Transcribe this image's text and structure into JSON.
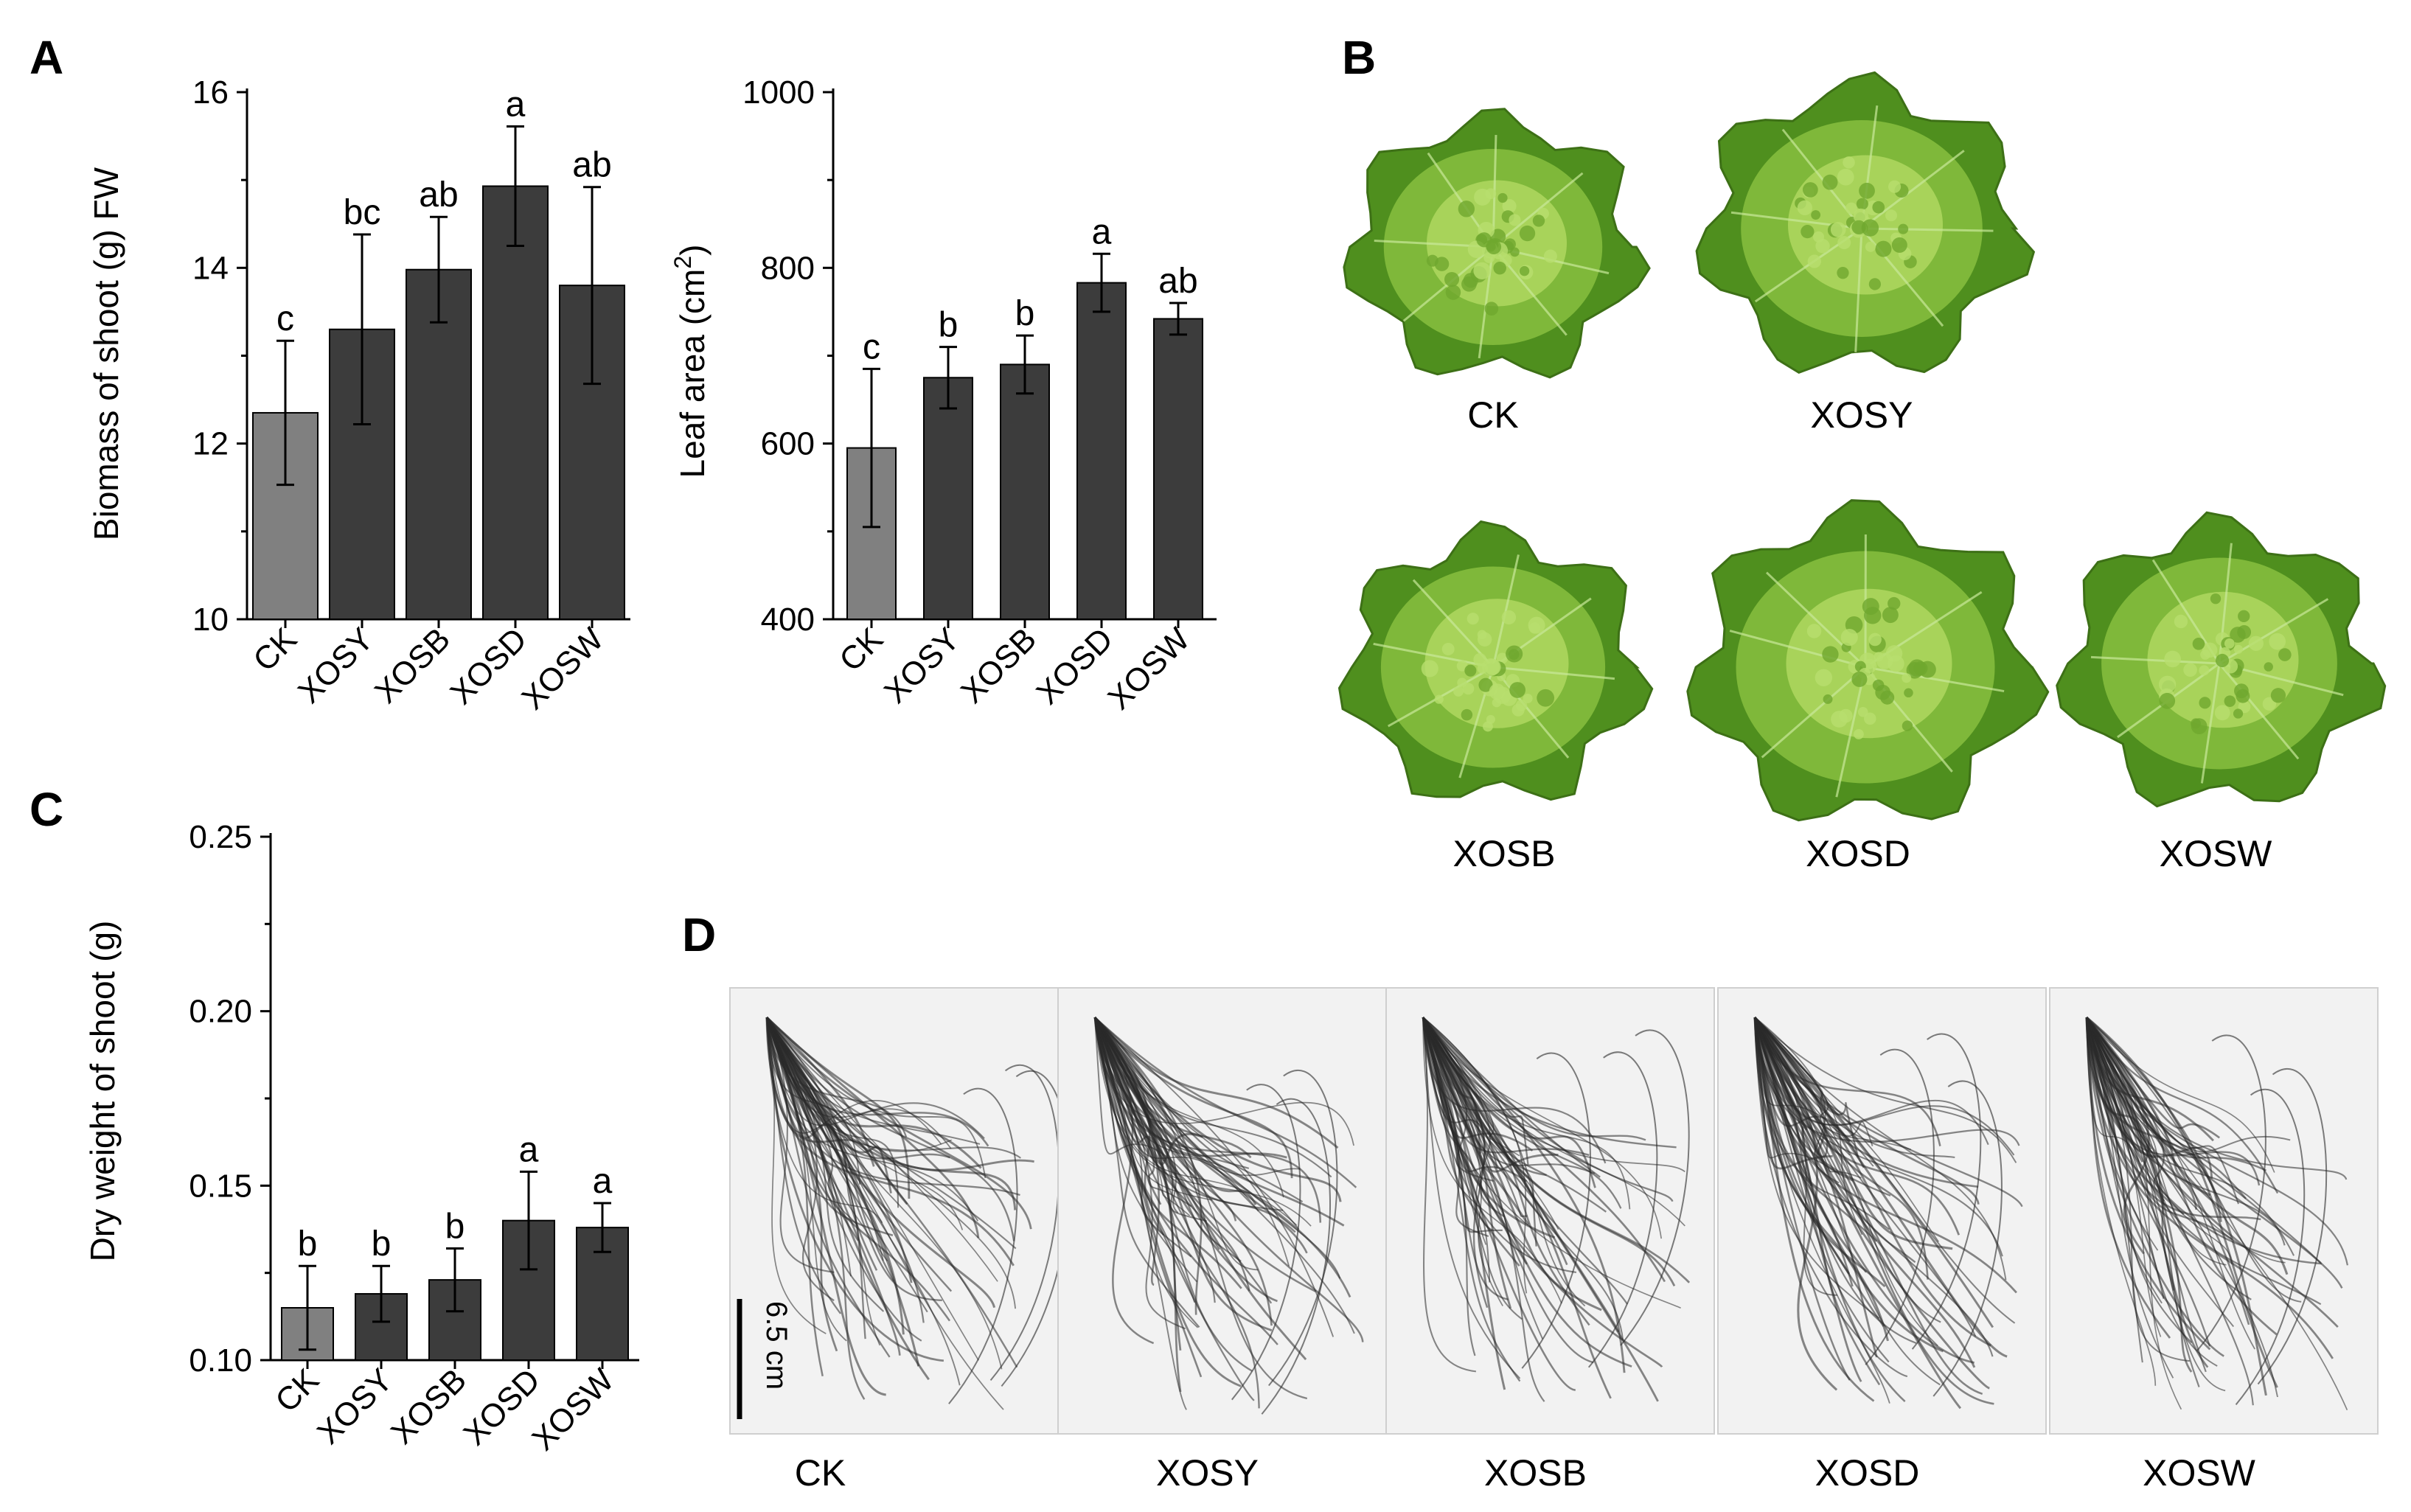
{
  "panels": {
    "A": "A",
    "B": "B",
    "C": "C",
    "D": "D"
  },
  "colors": {
    "ck_bar": "#808080",
    "treatment_bar": "#3c3c3c",
    "lettuce_light": "#a8d35a",
    "lettuce_dark": "#4f8f1e",
    "root": "#2a2a2a"
  },
  "chart_data": [
    {
      "id": "biomass",
      "type": "bar",
      "categories": [
        "CK",
        "XOSY",
        "XOSB",
        "XOSD",
        "XOSW"
      ],
      "values": [
        12.35,
        13.3,
        13.98,
        14.93,
        13.8
      ],
      "errors": [
        0.82,
        1.08,
        0.6,
        0.68,
        1.12
      ],
      "letters": [
        "c",
        "bc",
        "ab",
        "a",
        "ab"
      ],
      "ylabel": "Biomass of shoot (g) FW",
      "ylim": [
        10,
        16
      ],
      "yticks": [
        10,
        12,
        14,
        16
      ]
    },
    {
      "id": "leafarea",
      "type": "bar",
      "categories": [
        "CK",
        "XOSY",
        "XOSB",
        "XOSD",
        "XOSW"
      ],
      "values": [
        595,
        675,
        690,
        783,
        742
      ],
      "errors": [
        90,
        35,
        33,
        33,
        18
      ],
      "letters": [
        "c",
        "b",
        "b",
        "a",
        "ab"
      ],
      "ylabel": "Leaf area (cm",
      "ylabel_sup": "2",
      "ylabel_tail": ")",
      "ylim": [
        400,
        1000
      ],
      "yticks": [
        400,
        600,
        800,
        1000
      ]
    },
    {
      "id": "dryweight",
      "type": "bar",
      "categories": [
        "CK",
        "XOSY",
        "XOSB",
        "XOSD",
        "XOSW"
      ],
      "values": [
        0.115,
        0.119,
        0.123,
        0.14,
        0.138
      ],
      "errors": [
        0.012,
        0.008,
        0.009,
        0.014,
        0.007
      ],
      "letters": [
        "b",
        "b",
        "b",
        "a",
        "a"
      ],
      "ylabel": "Dry weight of shoot (g)",
      "ylim": [
        0.1,
        0.25
      ],
      "yticks": [
        "0.10",
        "0.15",
        "0.20",
        "0.25"
      ]
    }
  ],
  "photos_b": [
    "CK",
    "XOSY",
    "XOSB",
    "XOSD",
    "XOSW"
  ],
  "photos_d": [
    "CK",
    "XOSY",
    "XOSB",
    "XOSD",
    "XOSW"
  ],
  "scale_bar": "6.5 cm"
}
